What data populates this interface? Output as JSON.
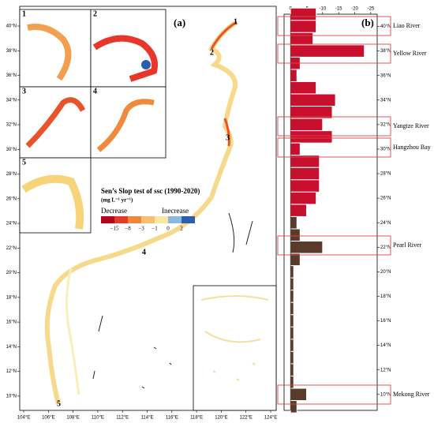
{
  "map": {
    "panel_label": "(a)",
    "lon_ticks": [
      {
        "value": 104,
        "label": "104°E"
      },
      {
        "value": 106,
        "label": "106°E"
      },
      {
        "value": 108,
        "label": "108°E"
      },
      {
        "value": 110,
        "label": "110°E"
      },
      {
        "value": 112,
        "label": "112°E"
      },
      {
        "value": 114,
        "label": "114°E"
      },
      {
        "value": 116,
        "label": "116°E"
      },
      {
        "value": 118,
        "label": "118°E"
      },
      {
        "value": 120,
        "label": "120°E"
      },
      {
        "value": 122,
        "label": "122°E"
      },
      {
        "value": 124,
        "label": "124°E"
      }
    ],
    "lat_ticks": [
      {
        "value": 40,
        "label": "40°N"
      },
      {
        "value": 38,
        "label": "38°N"
      },
      {
        "value": 36,
        "label": "36°N"
      },
      {
        "value": 34,
        "label": "34°N"
      },
      {
        "value": 32,
        "label": "32°N"
      },
      {
        "value": 30,
        "label": "30°N"
      },
      {
        "value": 28,
        "label": "28°N"
      },
      {
        "value": 26,
        "label": "26°N"
      },
      {
        "value": 24,
        "label": "24°N"
      },
      {
        "value": 22,
        "label": "22°N"
      },
      {
        "value": 20,
        "label": "20°N"
      },
      {
        "value": 18,
        "label": "18°N"
      },
      {
        "value": 16,
        "label": "16°N"
      },
      {
        "value": 14,
        "label": "14°N"
      },
      {
        "value": 12,
        "label": "12°N"
      },
      {
        "value": 10,
        "label": "10°N"
      }
    ],
    "inset_labels": [
      "1",
      "2",
      "3",
      "4",
      "5"
    ],
    "region_labels": [
      "1",
      "2",
      "3",
      "4",
      "5"
    ],
    "legend": {
      "title": "Sen’s Slop test of ssc (1990-2020)",
      "units": "(mg L⁻¹ yr⁻¹)",
      "decrease": "Decrease",
      "increase": "Inecrease",
      "colors": [
        "#b8001f",
        "#e8362a",
        "#f2873a",
        "#f7bf6e",
        "#fbe6a2",
        "#8ab8de",
        "#2a5fae"
      ],
      "ticks": [
        "−15",
        "−8",
        "−3",
        "−1",
        "0",
        "2"
      ]
    }
  },
  "chart_data": {
    "type": "bar",
    "panel_label": "(b)",
    "orientation": "horizontal",
    "categories": [
      41,
      40,
      39,
      38,
      37,
      36,
      35,
      34,
      33,
      32,
      31,
      30,
      29,
      28,
      27,
      26,
      25,
      24,
      23,
      22,
      21,
      20,
      19,
      18,
      17,
      16,
      15,
      14,
      13,
      12,
      11,
      10,
      9
    ],
    "series": [
      {
        "color": "#c8102e",
        "values": [
          -8,
          -8,
          -7,
          -23,
          -3,
          -2,
          -8,
          -14,
          -13,
          -10,
          -13,
          -3,
          -9,
          -9,
          -9,
          -8,
          -5,
          null,
          null,
          null,
          null,
          null,
          null,
          null,
          null,
          null,
          null,
          null,
          null,
          null,
          null,
          null,
          null
        ]
      },
      {
        "color": "#5a3a2a",
        "values": [
          null,
          null,
          null,
          null,
          null,
          null,
          null,
          null,
          null,
          null,
          null,
          null,
          null,
          null,
          null,
          null,
          null,
          -2,
          -3,
          -10,
          -3,
          -1,
          -1,
          -1,
          -1,
          -1,
          -1,
          -1,
          -1,
          -1,
          -1,
          -5,
          -2
        ]
      }
    ],
    "xlim": [
      2,
      -27
    ],
    "xticks": [
      0,
      -5,
      -10,
      -15,
      -20,
      -25
    ],
    "ylim": [
      41,
      8.7
    ],
    "yticks": [
      {
        "value": 40,
        "label": "40°N"
      },
      {
        "value": 38,
        "label": "38°N"
      },
      {
        "value": 36,
        "label": "36°N"
      },
      {
        "value": 34,
        "label": "34°N"
      },
      {
        "value": 32,
        "label": "32°N"
      },
      {
        "value": 30,
        "label": "30°N"
      },
      {
        "value": 28,
        "label": "28°N"
      },
      {
        "value": 26,
        "label": "26°N"
      },
      {
        "value": 24,
        "label": "24°N"
      },
      {
        "value": 22,
        "label": "22°N"
      },
      {
        "value": 20,
        "label": "20°N"
      },
      {
        "value": 18,
        "label": "18°N"
      },
      {
        "value": 16,
        "label": "16°N"
      },
      {
        "value": 14,
        "label": "14°N"
      },
      {
        "value": 12,
        "label": "12°N"
      },
      {
        "value": 10,
        "label": "10°N"
      }
    ],
    "rivers": [
      "Liao River",
      "Yellow River",
      "Yangtze River",
      "Hangzhou Bay",
      "Pearl River",
      "Mekong River"
    ]
  }
}
